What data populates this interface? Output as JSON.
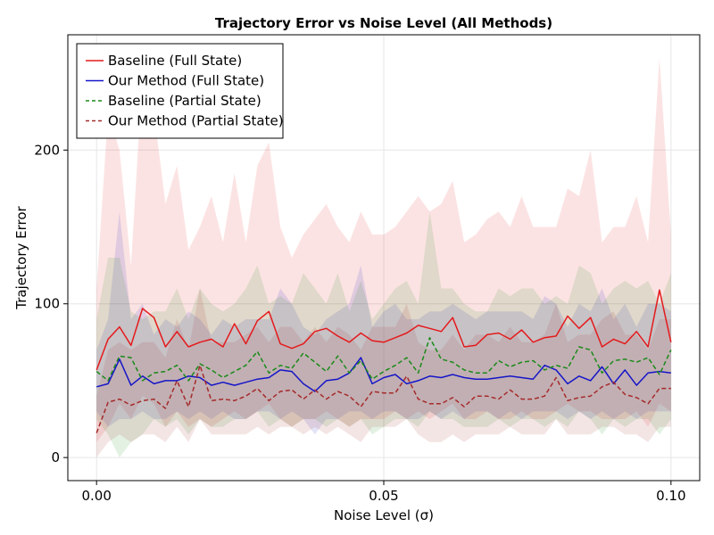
{
  "chart_data": {
    "type": "line",
    "title": "Trajectory Error vs Noise Level (All Methods)",
    "xlabel": "Noise Level (σ)",
    "ylabel": "Trajectory Error",
    "xlim": [
      -0.005,
      0.105
    ],
    "ylim": [
      -15,
      275
    ],
    "xticks": [
      0.0,
      0.05,
      0.1
    ],
    "xtick_labels": [
      "0.00",
      "0.05",
      "0.10"
    ],
    "yticks": [
      0,
      100,
      200
    ],
    "ytick_labels": [
      "0",
      "100",
      "200"
    ],
    "grid": true,
    "legend_position": "top-left",
    "x": [
      0.0,
      0.002,
      0.004,
      0.006,
      0.008,
      0.01,
      0.012,
      0.014,
      0.016,
      0.018,
      0.02,
      0.022,
      0.024,
      0.026,
      0.028,
      0.03,
      0.032,
      0.034,
      0.036,
      0.038,
      0.04,
      0.042,
      0.044,
      0.046,
      0.048,
      0.05,
      0.052,
      0.054,
      0.056,
      0.058,
      0.06,
      0.062,
      0.064,
      0.066,
      0.068,
      0.07,
      0.072,
      0.074,
      0.076,
      0.078,
      0.08,
      0.082,
      0.084,
      0.086,
      0.088,
      0.09,
      0.092,
      0.094,
      0.096,
      0.098,
      0.1
    ],
    "series": [
      {
        "name": "Baseline (Full State)",
        "color": "#e41a1c",
        "dash": "solid",
        "values": [
          57,
          77,
          85,
          73,
          97,
          91,
          72,
          82,
          72,
          75,
          77,
          72,
          87,
          74,
          89,
          95,
          74,
          71,
          74,
          82,
          84,
          79,
          75,
          81,
          76,
          75,
          78,
          81,
          86,
          84,
          82,
          91,
          72,
          73,
          80,
          81,
          77,
          83,
          75,
          78,
          79,
          92,
          84,
          91,
          72,
          77,
          74,
          82,
          72,
          109,
          75
        ],
        "lower": [
          10,
          20,
          35,
          25,
          40,
          35,
          20,
          30,
          20,
          25,
          20,
          25,
          30,
          25,
          30,
          35,
          25,
          20,
          25,
          25,
          30,
          25,
          20,
          25,
          25,
          25,
          30,
          25,
          30,
          25,
          30,
          35,
          25,
          25,
          30,
          25,
          25,
          30,
          25,
          25,
          30,
          35,
          30,
          30,
          25,
          25,
          25,
          30,
          20,
          35,
          30
        ],
        "upper": [
          110,
          225,
          200,
          125,
          250,
          225,
          165,
          190,
          135,
          150,
          170,
          140,
          185,
          140,
          190,
          205,
          150,
          130,
          145,
          155,
          165,
          150,
          140,
          160,
          145,
          145,
          150,
          160,
          170,
          160,
          165,
          180,
          140,
          145,
          155,
          160,
          150,
          170,
          150,
          150,
          150,
          175,
          170,
          200,
          140,
          150,
          150,
          170,
          140,
          260,
          145
        ]
      },
      {
        "name": "Our Method (Full State)",
        "color": "#1515c8",
        "dash": "solid",
        "values": [
          46,
          48,
          64,
          47,
          53,
          48,
          50,
          50,
          53,
          52,
          47,
          49,
          47,
          49,
          51,
          52,
          57,
          56,
          48,
          43,
          50,
          51,
          55,
          65,
          48,
          52,
          54,
          48,
          50,
          53,
          52,
          54,
          52,
          51,
          51,
          52,
          53,
          52,
          51,
          60,
          57,
          48,
          53,
          50,
          59,
          48,
          57,
          47,
          55,
          56,
          55
        ],
        "lower": [
          30,
          20,
          25,
          25,
          30,
          25,
          25,
          30,
          25,
          30,
          25,
          30,
          25,
          25,
          30,
          30,
          25,
          30,
          25,
          15,
          25,
          25,
          30,
          30,
          25,
          30,
          30,
          25,
          25,
          30,
          25,
          30,
          25,
          30,
          30,
          25,
          30,
          25,
          30,
          30,
          30,
          25,
          30,
          25,
          30,
          25,
          30,
          25,
          30,
          30,
          30
        ],
        "upper": [
          70,
          90,
          160,
          90,
          100,
          80,
          90,
          85,
          95,
          90,
          80,
          90,
          85,
          90,
          90,
          90,
          110,
          100,
          85,
          80,
          90,
          95,
          100,
          125,
          85,
          95,
          100,
          90,
          90,
          95,
          95,
          100,
          95,
          90,
          95,
          95,
          95,
          95,
          90,
          105,
          100,
          85,
          100,
          95,
          110,
          90,
          100,
          85,
          100,
          100,
          95
        ]
      },
      {
        "name": "Baseline (Partial State)",
        "color": "#1a8a1a",
        "dash": "dashed",
        "values": [
          56,
          50,
          66,
          65,
          50,
          55,
          56,
          60,
          50,
          61,
          57,
          52,
          56,
          60,
          69,
          55,
          60,
          58,
          68,
          62,
          56,
          66,
          55,
          63,
          51,
          56,
          60,
          65,
          55,
          78,
          64,
          62,
          57,
          55,
          55,
          63,
          59,
          62,
          63,
          57,
          60,
          58,
          72,
          70,
          55,
          63,
          64,
          62,
          65,
          54,
          70
        ],
        "lower": [
          25,
          15,
          0,
          10,
          15,
          25,
          20,
          25,
          15,
          25,
          20,
          20,
          25,
          25,
          30,
          20,
          25,
          20,
          25,
          25,
          20,
          25,
          20,
          25,
          15,
          20,
          25,
          25,
          20,
          30,
          25,
          25,
          20,
          20,
          20,
          25,
          20,
          25,
          25,
          20,
          25,
          20,
          30,
          25,
          15,
          25,
          20,
          25,
          25,
          15,
          25
        ],
        "upper": [
          90,
          130,
          130,
          95,
          90,
          95,
          95,
          110,
          90,
          110,
          100,
          95,
          100,
          110,
          125,
          100,
          105,
          100,
          120,
          110,
          100,
          120,
          95,
          115,
          90,
          100,
          110,
          115,
          100,
          160,
          110,
          110,
          100,
          95,
          95,
          110,
          105,
          110,
          110,
          100,
          105,
          100,
          125,
          120,
          100,
          110,
          115,
          110,
          115,
          100,
          120
        ]
      },
      {
        "name": "Our Method (Partial State)",
        "color": "#a52a2a",
        "dash": "dashed",
        "values": [
          16,
          36,
          38,
          34,
          37,
          38,
          32,
          50,
          33,
          60,
          37,
          38,
          37,
          40,
          45,
          37,
          43,
          44,
          38,
          44,
          38,
          43,
          40,
          33,
          43,
          42,
          42,
          53,
          38,
          35,
          35,
          39,
          33,
          40,
          40,
          38,
          44,
          38,
          38,
          40,
          52,
          37,
          39,
          40,
          46,
          49,
          41,
          39,
          35,
          45,
          45
        ],
        "lower": [
          0,
          10,
          15,
          10,
          15,
          15,
          10,
          20,
          10,
          25,
          15,
          15,
          15,
          15,
          20,
          15,
          20,
          20,
          15,
          20,
          15,
          20,
          15,
          10,
          20,
          20,
          20,
          25,
          15,
          10,
          10,
          15,
          10,
          15,
          15,
          15,
          20,
          15,
          15,
          15,
          25,
          15,
          15,
          15,
          20,
          20,
          15,
          15,
          10,
          20,
          20
        ],
        "upper": [
          40,
          70,
          75,
          70,
          75,
          75,
          65,
          90,
          70,
          110,
          75,
          75,
          75,
          80,
          85,
          75,
          85,
          85,
          75,
          85,
          75,
          85,
          80,
          70,
          85,
          85,
          85,
          100,
          75,
          70,
          70,
          80,
          70,
          80,
          80,
          75,
          85,
          75,
          75,
          80,
          100,
          75,
          80,
          80,
          90,
          95,
          80,
          80,
          70,
          90,
          90
        ]
      }
    ]
  }
}
